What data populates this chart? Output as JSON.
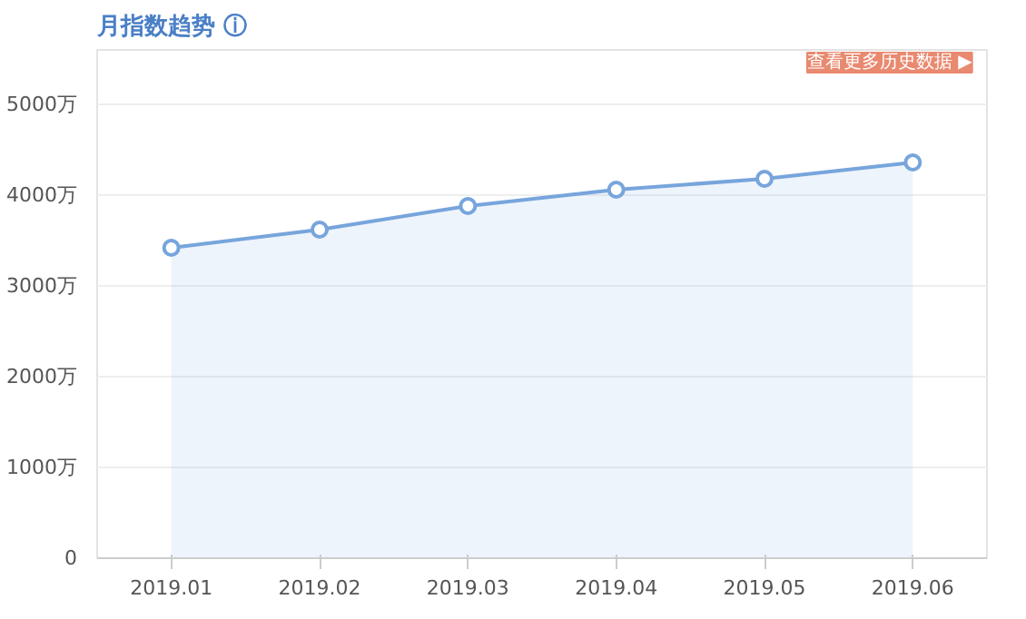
{
  "chart_data": {
    "type": "area",
    "title": "月指数趋势 ⓘ",
    "categories": [
      "2019.01",
      "2019.02",
      "2019.03",
      "2019.04",
      "2019.05",
      "2019.06"
    ],
    "series": [
      {
        "color": "#77a5dc",
        "values": [
          3420,
          3620,
          3880,
          4060,
          4180,
          4360
        ]
      }
    ],
    "ylim": [
      0,
      5000
    ],
    "yticks": [
      0,
      {
        "value": 1000,
        "label": "1000万"
      },
      {
        "value": 2000,
        "label": "2000万"
      },
      {
        "value": 3000,
        "label": "3000万"
      },
      {
        "value": 4000,
        "label": "4000万"
      },
      {
        "value": 5000,
        "label": "5000万"
      }
    ],
    "grid": "y",
    "marker": "circle",
    "line_style": "solid",
    "annotations": [
      "查看更多历史数据 ▶"
    ]
  }
}
